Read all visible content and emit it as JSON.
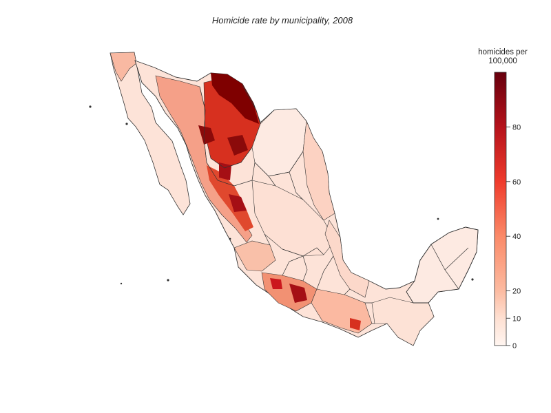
{
  "title": "Homicide rate by municipality, 2008",
  "legend": {
    "title_line1": "homicides per",
    "title_line2": "100,000",
    "ticks": [
      0,
      10,
      20,
      40,
      60,
      80
    ],
    "max": 100,
    "colors": [
      "#fff5f0",
      "#fee0d2",
      "#fcbba1",
      "#fc9272",
      "#fb6a4a",
      "#ef3b2c",
      "#cb181d",
      "#a50f15",
      "#67000d"
    ]
  },
  "palette": {
    "low": "#fde3d8",
    "mid": "#f7a68c",
    "high": "#d7301f",
    "very_high": "#7f0000",
    "border": "#333333"
  }
}
